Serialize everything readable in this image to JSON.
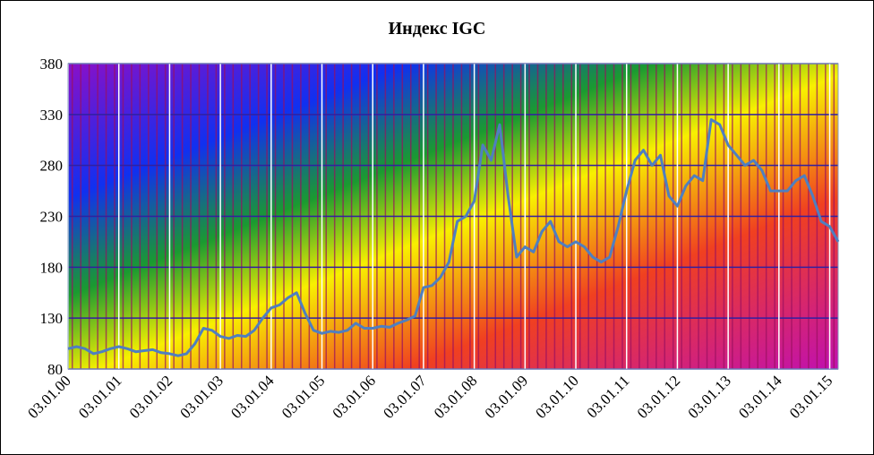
{
  "chart_data": {
    "type": "line",
    "title": "Индекс IGC",
    "categories": [
      "03.01.00",
      null,
      null,
      null,
      null,
      null,
      "03.01.01",
      null,
      null,
      null,
      null,
      null,
      "03.01.02",
      null,
      null,
      null,
      null,
      null,
      "03.01.03",
      null,
      null,
      null,
      null,
      null,
      "03.01.04",
      null,
      null,
      null,
      null,
      null,
      "03.01.05",
      null,
      null,
      null,
      null,
      null,
      "03.01.06",
      null,
      null,
      null,
      null,
      null,
      "03.01.07",
      null,
      null,
      null,
      null,
      null,
      "03.01.08",
      null,
      null,
      null,
      null,
      null,
      "03.01.09",
      null,
      null,
      null,
      null,
      null,
      "03.01.10",
      null,
      null,
      null,
      null,
      null,
      "03.01.11",
      null,
      null,
      null,
      null,
      null,
      "03.01.12",
      null,
      null,
      null,
      null,
      null,
      "03.01.13",
      null,
      null,
      null,
      null,
      null,
      "03.01.14",
      null,
      null,
      null,
      null,
      null,
      "03.01.15",
      null
    ],
    "values": [
      100,
      102,
      100,
      95,
      97,
      100,
      102,
      100,
      97,
      98,
      99,
      96,
      95,
      93,
      95,
      105,
      120,
      118,
      112,
      110,
      113,
      112,
      118,
      130,
      140,
      143,
      150,
      155,
      135,
      118,
      115,
      117,
      116,
      118,
      125,
      120,
      120,
      122,
      121,
      125,
      128,
      132,
      160,
      162,
      170,
      185,
      225,
      230,
      245,
      300,
      285,
      320,
      250,
      190,
      200,
      195,
      215,
      225,
      205,
      200,
      205,
      200,
      190,
      185,
      190,
      220,
      255,
      285,
      295,
      280,
      290,
      250,
      240,
      260,
      270,
      265,
      325,
      320,
      300,
      290,
      280,
      285,
      275,
      255,
      255,
      255,
      265,
      270,
      250,
      225,
      220,
      205
    ],
    "color": "#4f7fc0",
    "ylim": [
      80,
      380
    ],
    "yticks": [
      80,
      130,
      180,
      230,
      280,
      330,
      380
    ],
    "grid": true
  }
}
